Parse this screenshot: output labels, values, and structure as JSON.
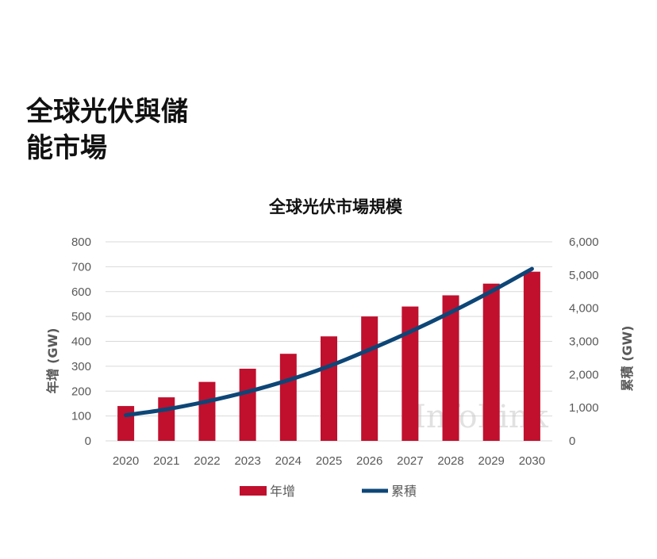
{
  "page": {
    "title_line1": "全球光伏與儲",
    "title_line2": "能市場"
  },
  "chart_data": {
    "type": "bar",
    "title": "全球光伏市場規模",
    "categories": [
      "2020",
      "2021",
      "2022",
      "2023",
      "2024",
      "2025",
      "2026",
      "2027",
      "2028",
      "2029",
      "2030"
    ],
    "series": [
      {
        "name": "年增",
        "kind": "bar",
        "axis": "left",
        "color": "#c0102e",
        "values": [
          140,
          175,
          237,
          290,
          350,
          420,
          500,
          540,
          585,
          632,
          680
        ]
      },
      {
        "name": "累積",
        "kind": "line",
        "axis": "right",
        "color": "#0d4677",
        "values": [
          775,
          950,
          1190,
          1480,
          1830,
          2250,
          2750,
          3290,
          3875,
          4507,
          5187
        ]
      }
    ],
    "y_left": {
      "label": "年增 (GW)",
      "min": 0,
      "max": 800,
      "ticks": [
        "0",
        "100",
        "200",
        "300",
        "400",
        "500",
        "600",
        "700",
        "800"
      ]
    },
    "y_right": {
      "label": "累積 (GW)",
      "min": 0,
      "max": 6000,
      "ticks": [
        "0",
        "1,000",
        "2,000",
        "3,000",
        "4,000",
        "5,000",
        "6,000"
      ]
    },
    "legend": [
      {
        "label": "年增",
        "kind": "bar"
      },
      {
        "label": "累積",
        "kind": "line"
      }
    ],
    "grid": true,
    "watermark": "InfoLink"
  }
}
